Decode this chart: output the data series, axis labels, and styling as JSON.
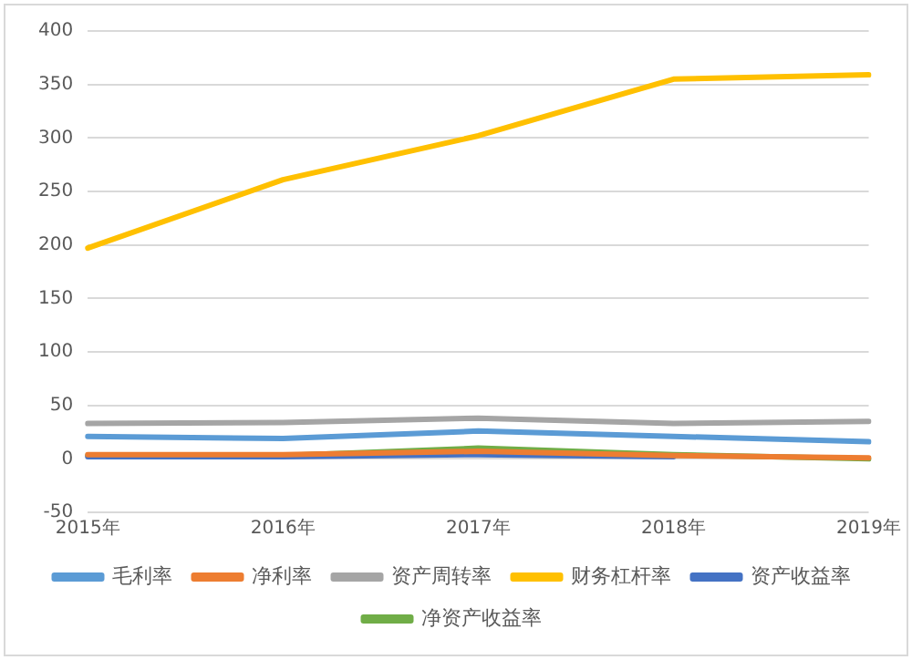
{
  "chart_data": {
    "type": "line",
    "categories": [
      "2015年",
      "2016年",
      "2017年",
      "2018年",
      "2019年"
    ],
    "series": [
      {
        "name": "毛利率",
        "color": "#5b9bd5",
        "values": [
          21,
          19,
          26,
          21,
          16
        ]
      },
      {
        "name": "净利率",
        "color": "#ed7d31",
        "values": [
          4,
          4,
          7,
          3,
          1
        ]
      },
      {
        "name": "资产周转率",
        "color": "#a5a5a5",
        "values": [
          33,
          34,
          38,
          33,
          35
        ]
      },
      {
        "name": "财务杠杆率",
        "color": "#ffc000",
        "values": [
          197,
          261,
          302,
          355,
          359
        ]
      },
      {
        "name": "资产收益率",
        "color": "#4472c4",
        "values": [
          2,
          2,
          4,
          2,
          null
        ]
      },
      {
        "name": "净资产收益率",
        "color": "#70ad47",
        "values": [
          3,
          3,
          10,
          4,
          0
        ]
      }
    ],
    "ylim": [
      -50,
      400
    ],
    "yticks": [
      -50,
      0,
      50,
      100,
      150,
      200,
      250,
      300,
      350,
      400
    ],
    "grid": "y",
    "legend": "bottom",
    "marker": "none",
    "line_style": "solid"
  }
}
